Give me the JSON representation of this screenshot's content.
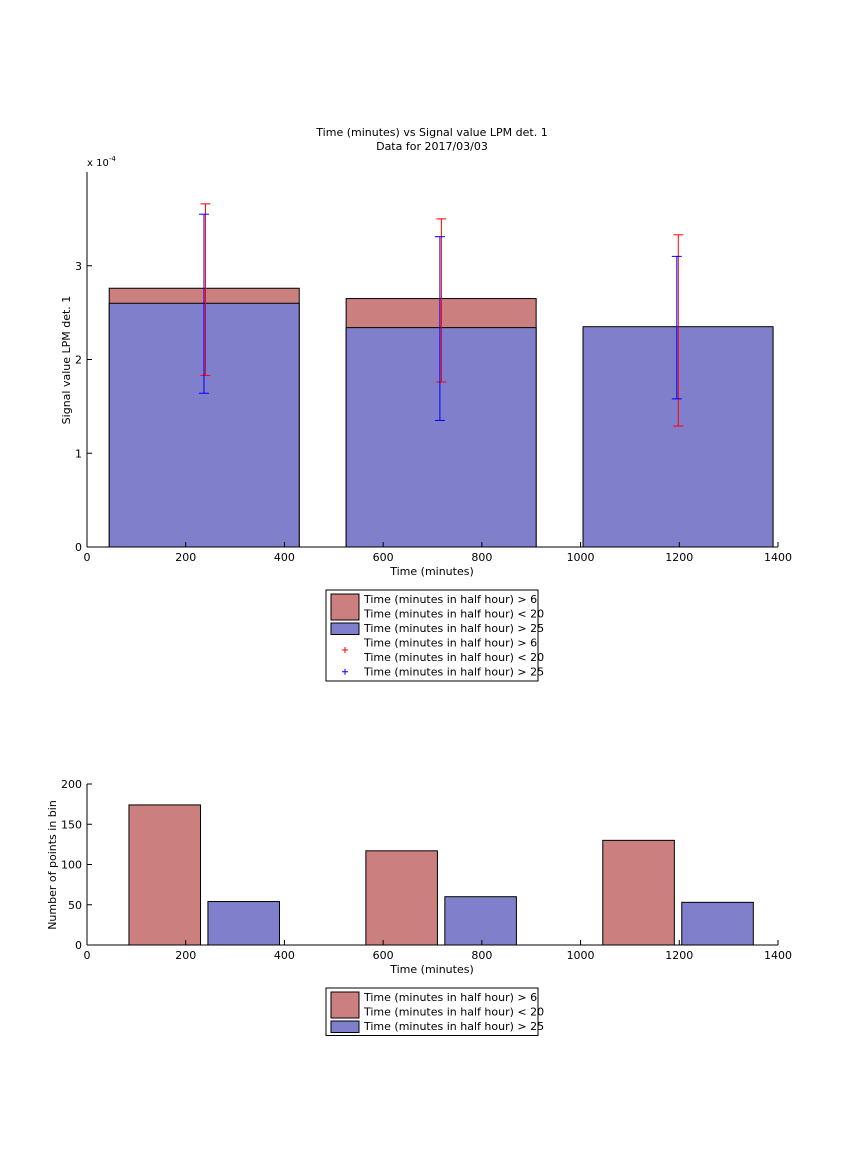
{
  "colors": {
    "group1_fill": "#cc7f7f",
    "group2_fill": "#7f7fcc",
    "group1_errorbar": "#ff0000",
    "group2_errorbar": "#0000ff",
    "axis": "#000000"
  },
  "legend_top": {
    "entries": [
      {
        "kind": "patch",
        "series": 0,
        "lines": [
          "Time (minutes in half hour) > 6",
          "Time (minutes in half hour) < 20"
        ]
      },
      {
        "kind": "patch",
        "series": 1,
        "lines": [
          "Time (minutes in half hour) > 25"
        ]
      },
      {
        "kind": "marker",
        "series": 0,
        "lines": [
          "Time (minutes in half hour) > 6",
          "Time (minutes in half hour) < 20"
        ]
      },
      {
        "kind": "marker",
        "series": 1,
        "lines": [
          "Time (minutes in half hour) > 25"
        ]
      }
    ]
  },
  "legend_bottom": {
    "entries": [
      {
        "kind": "patch",
        "series": 0,
        "lines": [
          "Time (minutes in half hour) > 6",
          "Time (minutes in half hour) < 20"
        ]
      },
      {
        "kind": "patch",
        "series": 1,
        "lines": [
          "Time (minutes in half hour) > 25"
        ]
      }
    ]
  },
  "chart_data": [
    {
      "type": "bar",
      "title": "Time (minutes) vs Signal value LPM det. 1",
      "subtitle": "Data for 2017/03/03",
      "xlabel": "Time (minutes)",
      "ylabel": "Signal value LPM det. 1",
      "y_exponent_label": "x 10",
      "y_exponent_power": "-4",
      "xlim": [
        0,
        1400
      ],
      "ylim": [
        0,
        4
      ],
      "xticks": [
        0,
        200,
        400,
        600,
        800,
        1000,
        1200,
        1400
      ],
      "yticks": [
        0,
        1,
        2,
        3
      ],
      "bar_bins": [
        [
          45,
          430
        ],
        [
          525,
          910
        ],
        [
          1005,
          1390
        ]
      ],
      "series": [
        {
          "name": "Time (minutes in half hour) > 6 Time (minutes in half hour) < 20",
          "values": [
            2.76,
            2.65,
            2.33
          ],
          "error_x": [
            240,
            718,
            1198
          ],
          "error_low": [
            1.83,
            1.76,
            1.29
          ],
          "error_high": [
            3.66,
            3.5,
            3.33
          ]
        },
        {
          "name": "Time (minutes in half hour) > 25",
          "values": [
            2.6,
            2.34,
            2.35
          ],
          "error_x": [
            237,
            715,
            1195
          ],
          "error_low": [
            1.64,
            1.35,
            1.58
          ],
          "error_high": [
            3.55,
            3.31,
            3.1
          ]
        }
      ]
    },
    {
      "type": "bar",
      "xlabel": "Time (minutes)",
      "ylabel": "Number of points in bin",
      "xlim": [
        0,
        1400
      ],
      "ylim": [
        0,
        200
      ],
      "xticks": [
        0,
        200,
        400,
        600,
        800,
        1000,
        1200,
        1400
      ],
      "yticks": [
        0,
        50,
        100,
        150,
        200
      ],
      "series": [
        {
          "name": "Time (minutes in half hour) > 6 Time (minutes in half hour) < 20",
          "bins": [
            [
              85,
              230
            ],
            [
              565,
              710
            ],
            [
              1045,
              1190
            ]
          ],
          "values": [
            174,
            117,
            130
          ]
        },
        {
          "name": "Time (minutes in half hour) > 25",
          "bins": [
            [
              245,
              390
            ],
            [
              725,
              870
            ],
            [
              1205,
              1350
            ]
          ],
          "values": [
            54,
            60,
            53
          ]
        }
      ]
    }
  ]
}
